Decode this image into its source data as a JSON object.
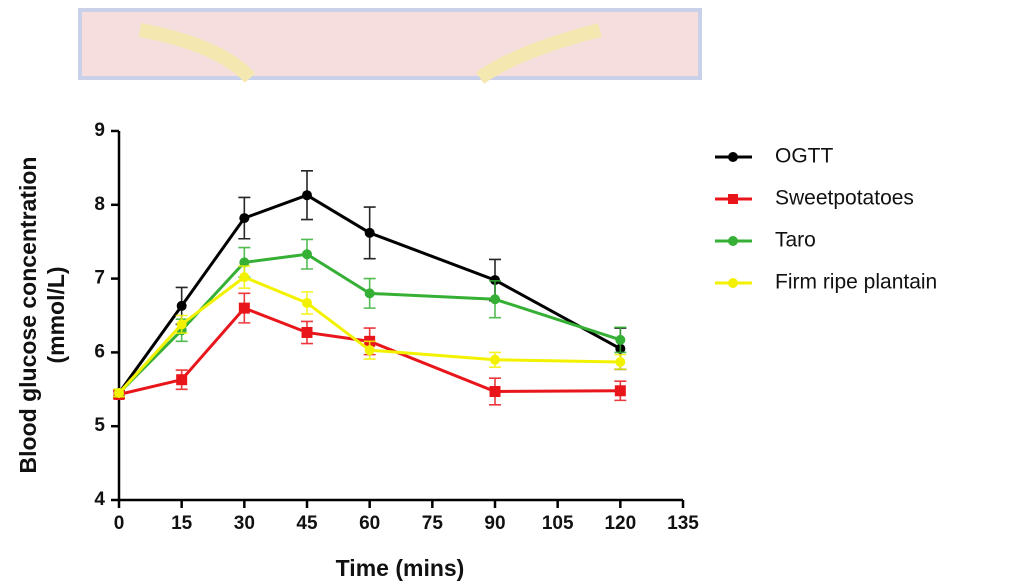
{
  "chart_data": {
    "type": "line",
    "xlabel": "Time (mins)",
    "ylabel": [
      "Blood glucose concentration",
      "(mmol/L)"
    ],
    "x": [
      0,
      15,
      30,
      45,
      60,
      90,
      120
    ],
    "xlim": [
      0,
      135
    ],
    "xticks": [
      0,
      15,
      30,
      45,
      60,
      75,
      90,
      105,
      120,
      135
    ],
    "ylim": [
      4,
      9
    ],
    "yticks": [
      4,
      5,
      6,
      7,
      8,
      9
    ],
    "grid": false,
    "legend": "right",
    "series": [
      {
        "name": "OGTT",
        "color": "#000000",
        "marker": "circle",
        "values": [
          5.45,
          6.63,
          7.82,
          8.13,
          7.62,
          6.98,
          6.05
        ],
        "errors": [
          0.05,
          0.25,
          0.28,
          0.33,
          0.35,
          0.28,
          0.28
        ]
      },
      {
        "name": "Sweetpotatoes",
        "color": "#e8161b",
        "marker": "square",
        "values": [
          5.43,
          5.63,
          6.6,
          6.27,
          6.15,
          5.47,
          5.48
        ],
        "errors": [
          0.05,
          0.13,
          0.2,
          0.15,
          0.18,
          0.18,
          0.13
        ]
      },
      {
        "name": "Taro",
        "color": "#35b035",
        "marker": "circle",
        "values": [
          5.45,
          6.3,
          7.22,
          7.33,
          6.8,
          6.72,
          6.17
        ],
        "errors": [
          0.05,
          0.15,
          0.2,
          0.2,
          0.2,
          0.25,
          0.17
        ]
      },
      {
        "name": "Firm ripe plantain",
        "color": "#f2f200",
        "marker": "circle",
        "values": [
          5.45,
          6.38,
          7.02,
          6.67,
          6.03,
          5.9,
          5.87
        ],
        "errors": [
          0.05,
          0.12,
          0.15,
          0.15,
          0.12,
          0.1,
          0.1
        ]
      }
    ]
  }
}
